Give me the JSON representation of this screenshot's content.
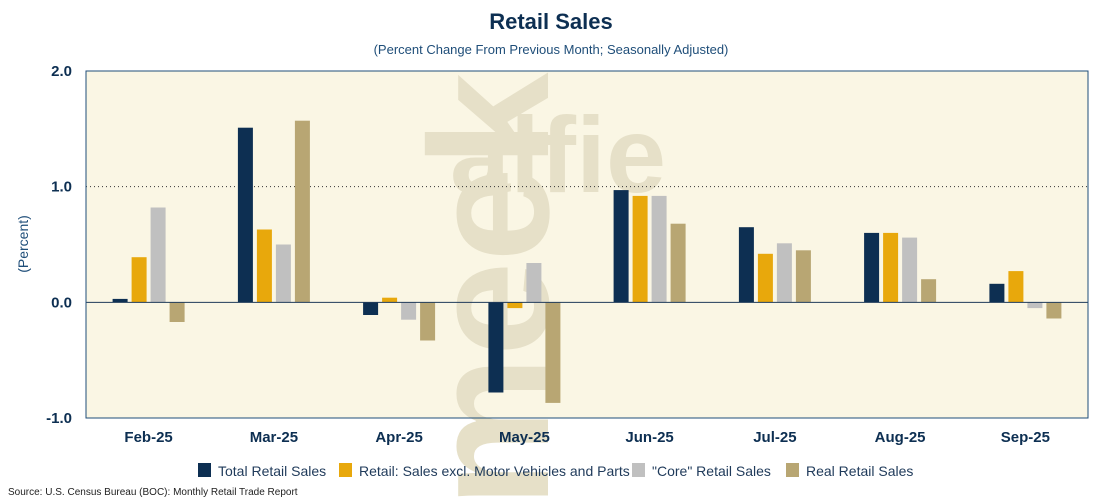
{
  "chart_data": {
    "type": "bar",
    "title": "Retail Sales",
    "subtitle": "(Percent Change From Previous Month; Seasonally Adjusted)",
    "xlabel": "",
    "ylabel": "(Percent)",
    "ylim": [
      -1.0,
      2.0
    ],
    "yticks": [
      {
        "value": 2.0,
        "label": "2.0"
      },
      {
        "value": 1.0,
        "label": "1.0"
      },
      {
        "value": 0.0,
        "label": "0.0"
      },
      {
        "value": -1.0,
        "label": "-1.0"
      }
    ],
    "categories": [
      "Feb-25",
      "Mar-25",
      "Apr-25",
      "May-25",
      "Jun-25",
      "Jul-25",
      "Aug-25",
      "Sep-25"
    ],
    "series": [
      {
        "name": "Total Retail Sales",
        "color": "#0d2f52",
        "values": [
          0.03,
          1.51,
          -0.11,
          -0.78,
          0.97,
          0.65,
          0.6,
          0.16
        ]
      },
      {
        "name": "Retail: Sales excl. Motor Vehicles and Parts",
        "color": "#e8a80c",
        "values": [
          0.39,
          0.63,
          0.04,
          -0.05,
          0.92,
          0.42,
          0.6,
          0.27
        ]
      },
      {
        "name": "\"Core\" Retail Sales",
        "color": "#c0c0c0",
        "values": [
          0.82,
          0.5,
          -0.15,
          0.34,
          0.92,
          0.51,
          0.56,
          -0.05
        ]
      },
      {
        "name": "Real Retail Sales",
        "color": "#b8a673",
        "values": [
          -0.17,
          1.57,
          -0.33,
          -0.87,
          0.68,
          0.45,
          0.2,
          -0.14
        ]
      }
    ],
    "gridline_at": 1.0,
    "legend_position": "bottom",
    "watermark": [
      "alfie",
      "meek"
    ],
    "source": "Source: U.S. Census Bureau (BOC): Monthly Retail Trade Report"
  },
  "colors": {
    "plot_background": "#faf6e4",
    "axis": "#1f4e79",
    "text": "#0d2f52"
  }
}
